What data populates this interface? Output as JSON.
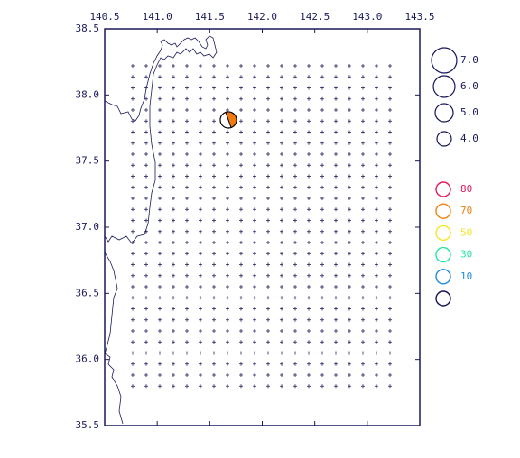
{
  "map": {
    "lon_ticks": [
      {
        "value": 140.5,
        "label": "140.5"
      },
      {
        "value": 141.0,
        "label": "141.0"
      },
      {
        "value": 141.5,
        "label": "141.5"
      },
      {
        "value": 142.0,
        "label": "142.0"
      },
      {
        "value": 142.5,
        "label": "142.5"
      },
      {
        "value": 143.0,
        "label": "143.0"
      },
      {
        "value": 143.5,
        "label": "143.5"
      }
    ],
    "lat_ticks": [
      {
        "value": 35.5,
        "label": "35.5"
      },
      {
        "value": 36.0,
        "label": "36.0"
      },
      {
        "value": 36.5,
        "label": "36.5"
      },
      {
        "value": 37.0,
        "label": "37.0"
      },
      {
        "value": 37.5,
        "label": "37.5"
      },
      {
        "value": 38.0,
        "label": "38.0"
      },
      {
        "value": 38.5,
        "label": "38.5"
      }
    ],
    "magnitude_legend": [
      "7.0",
      "6.0",
      "5.0",
      "4.0"
    ],
    "depth_legend": [
      {
        "label": "80",
        "color": "#dc1e5a"
      },
      {
        "label": "70",
        "color": "#f08214"
      },
      {
        "label": "50",
        "color": "#f5e628"
      },
      {
        "label": "30",
        "color": "#28e6a0"
      },
      {
        "label": "10",
        "color": "#1e8cdc"
      },
      {
        "color": "#14145a"
      }
    ]
  }
}
